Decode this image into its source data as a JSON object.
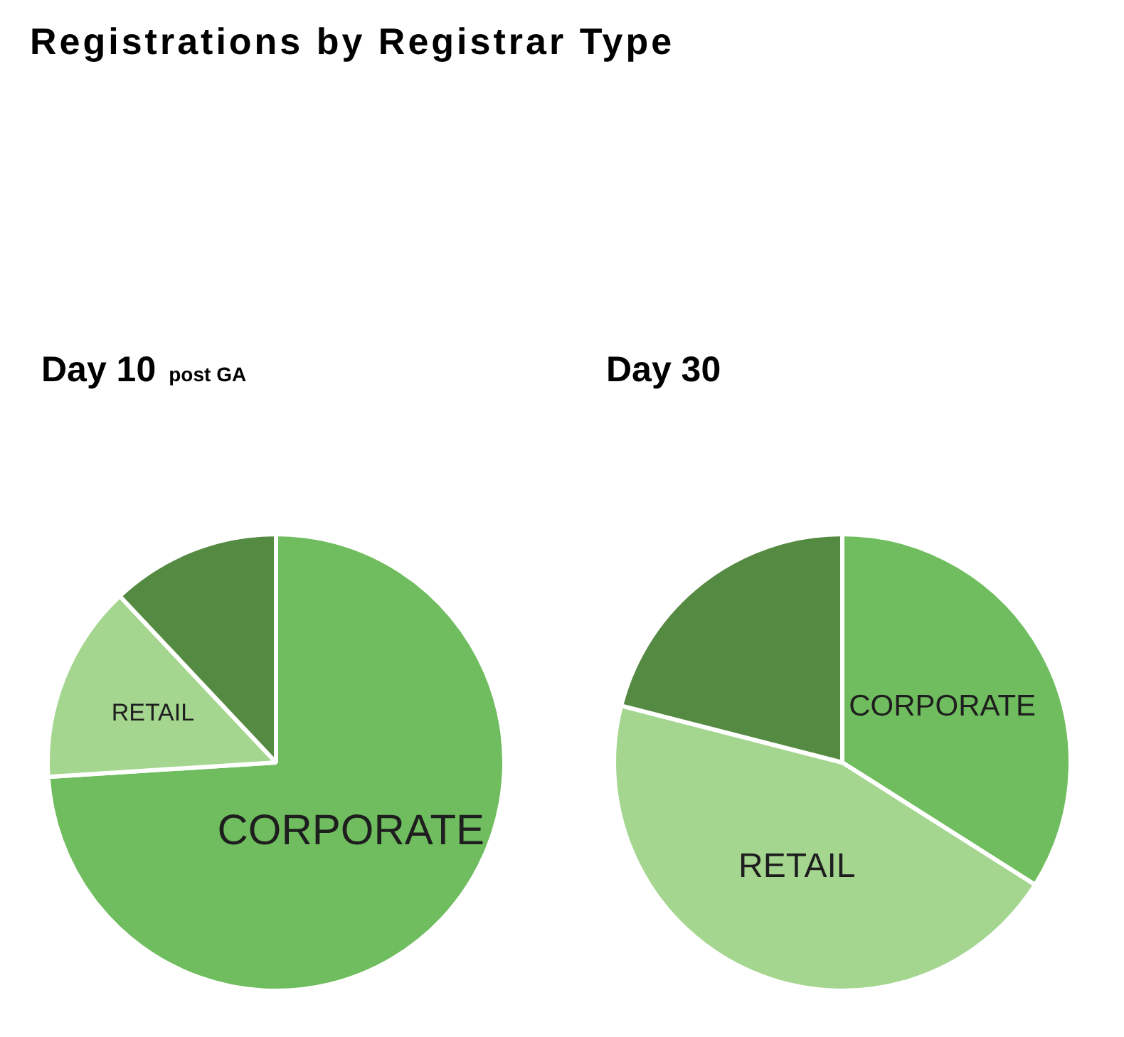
{
  "chart_data": [
    {
      "type": "other",
      "title": "Registrations by Registrar Type"
    },
    {
      "type": "pie",
      "title": "Day 10",
      "subtitle": "post GA",
      "categories": [
        "CORPORATE",
        "RETAIL",
        null
      ],
      "values": [
        74,
        14,
        12
      ],
      "colors": [
        "#6fbd5e",
        "#a5d68f",
        "#558a42"
      ]
    },
    {
      "type": "pie",
      "title": "Day 30",
      "categories": [
        "CORPORATE",
        "RETAIL",
        null
      ],
      "values": [
        34,
        45,
        21
      ],
      "colors": [
        "#6fbd5e",
        "#a5d68f",
        "#558a42"
      ]
    }
  ]
}
